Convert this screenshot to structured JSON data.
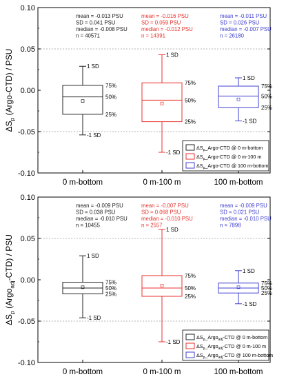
{
  "chart_data": [
    {
      "type": "box",
      "ylabel": "ΔSp (Argo-CTD) / PSU",
      "ylabel_parts": {
        "a": "ΔS",
        "sub": "p",
        "b": " (Argo-CTD) / PSU"
      },
      "ylim": [
        -0.1,
        0.1
      ],
      "yticks": [
        "0.10",
        "0.05",
        "0.00",
        "-0.05",
        "-0.10"
      ],
      "grid": "dashed at ±0.05",
      "categories": [
        "0 m-bottom",
        "0 m-100 m",
        "100 m-bottom"
      ],
      "colors": [
        "#222222",
        "#e8322c",
        "#3f3fd0"
      ],
      "series": [
        {
          "name": "ΔSp_Argo-CTD @ 0 m-bottom",
          "whisker_low": -0.054,
          "q1": -0.029,
          "median": -0.008,
          "q3": 0.006,
          "whisker_high": 0.029,
          "mean": -0.013
        },
        {
          "name": "ΔSp_Argo-CTD @ 0 m-100 m",
          "whisker_low": -0.075,
          "q1": -0.038,
          "median": -0.012,
          "q3": 0.009,
          "whisker_high": 0.043,
          "mean": -0.016
        },
        {
          "name": "ΔSp_Argo-CTD @ 100 m-bottom",
          "whisker_low": -0.037,
          "q1": -0.021,
          "median": -0.007,
          "q3": 0.005,
          "whisker_high": 0.015,
          "mean": -0.011
        }
      ],
      "stats_text": [
        [
          "mean = -0.013 PSU",
          "SD = 0.041 PSU",
          "median = -0.008 PSU",
          "n = 40571"
        ],
        [
          "mean = -0.016 PSU",
          "SD = 0.059 PSU",
          "median = -0.012 PSU",
          "n = 14391"
        ],
        [
          "mean = -0.011 PSU",
          "SD = 0.026 PSU",
          "median = -0.007 PSU",
          "n = 26180"
        ]
      ],
      "box_labels": {
        "upper": "1 SD",
        "lower": "-1 SD",
        "q3": "75%",
        "median": "50%",
        "q1": "25%"
      },
      "legend_position": "bottom-right",
      "legend": [
        {
          "a": "ΔS",
          "sub": "p",
          "b": "_Argo-CTD @ 0 m-bottom"
        },
        {
          "a": "ΔS",
          "sub": "p",
          "b": "_Argo-CTD @ 0 m-100 m"
        },
        {
          "a": "ΔS",
          "sub": "p",
          "b": "_Argo-CTD @ 100 m-bottom"
        }
      ]
    },
    {
      "type": "box",
      "ylabel": "ΔSp (Argoadj-CTD) / PSU",
      "ylabel_parts": {
        "a": "ΔS",
        "sub": "p",
        "b": " (Argo",
        "sub2": "adj",
        "c": "-CTD) / PSU"
      },
      "ylim": [
        -0.1,
        0.1
      ],
      "yticks": [
        "0.10",
        "0.05",
        "0.00",
        "-0.05",
        "-0.10"
      ],
      "grid": "dashed at ±0.05",
      "categories": [
        "0 m-bottom",
        "0 m-100 m",
        "100 m-bottom"
      ],
      "colors": [
        "#222222",
        "#e8322c",
        "#3f3fd0"
      ],
      "series": [
        {
          "name": "ΔSp_Argoadj-CTD @ 0 m-bottom",
          "whisker_low": -0.046,
          "q1": -0.017,
          "median": -0.01,
          "q3": -0.003,
          "whisker_high": 0.029,
          "mean": -0.009
        },
        {
          "name": "ΔSp_Argoadj-CTD @ 0 m-100 m",
          "whisker_low": -0.075,
          "q1": -0.02,
          "median": -0.01,
          "q3": 0.005,
          "whisker_high": 0.061,
          "mean": -0.007
        },
        {
          "name": "ΔSp_Argoadj-CTD @ 100 m-bottom",
          "whisker_low": -0.029,
          "q1": -0.016,
          "median": -0.01,
          "q3": -0.004,
          "whisker_high": 0.011,
          "mean": -0.009
        }
      ],
      "stats_text": [
        [
          "mean = -0.009 PSU",
          "SD = 0.038 PSU",
          "median = -0.010 PSU",
          "n = 10455"
        ],
        [
          "mean = -0.007 PSU",
          "SD = 0.068 PSU",
          "median = -0.010 PSU",
          "n = 2557"
        ],
        [
          "mean = -0.009 PSU",
          "SD = 0.021 PSU",
          "median = -0.010 PSU",
          "n = 7898"
        ]
      ],
      "box_labels": {
        "upper": "1 SD",
        "lower": "-1 SD",
        "q3": "75%",
        "median": "50%",
        "q1": "25%"
      },
      "legend_position": "bottom-right",
      "legend": [
        {
          "a": "ΔS",
          "sub": "p",
          "b": "_Argo",
          "sub2": "adj",
          "c": "-CTD @ 0 m-bottom"
        },
        {
          "a": "ΔS",
          "sub": "p",
          "b": "_Argo",
          "sub2": "adj",
          "c": "-CTD @ 0 m-100 m"
        },
        {
          "a": "ΔS",
          "sub": "p",
          "b": "_Argo",
          "sub2": "adj",
          "c": "-CTD @ 100 m-bottom"
        }
      ]
    }
  ]
}
